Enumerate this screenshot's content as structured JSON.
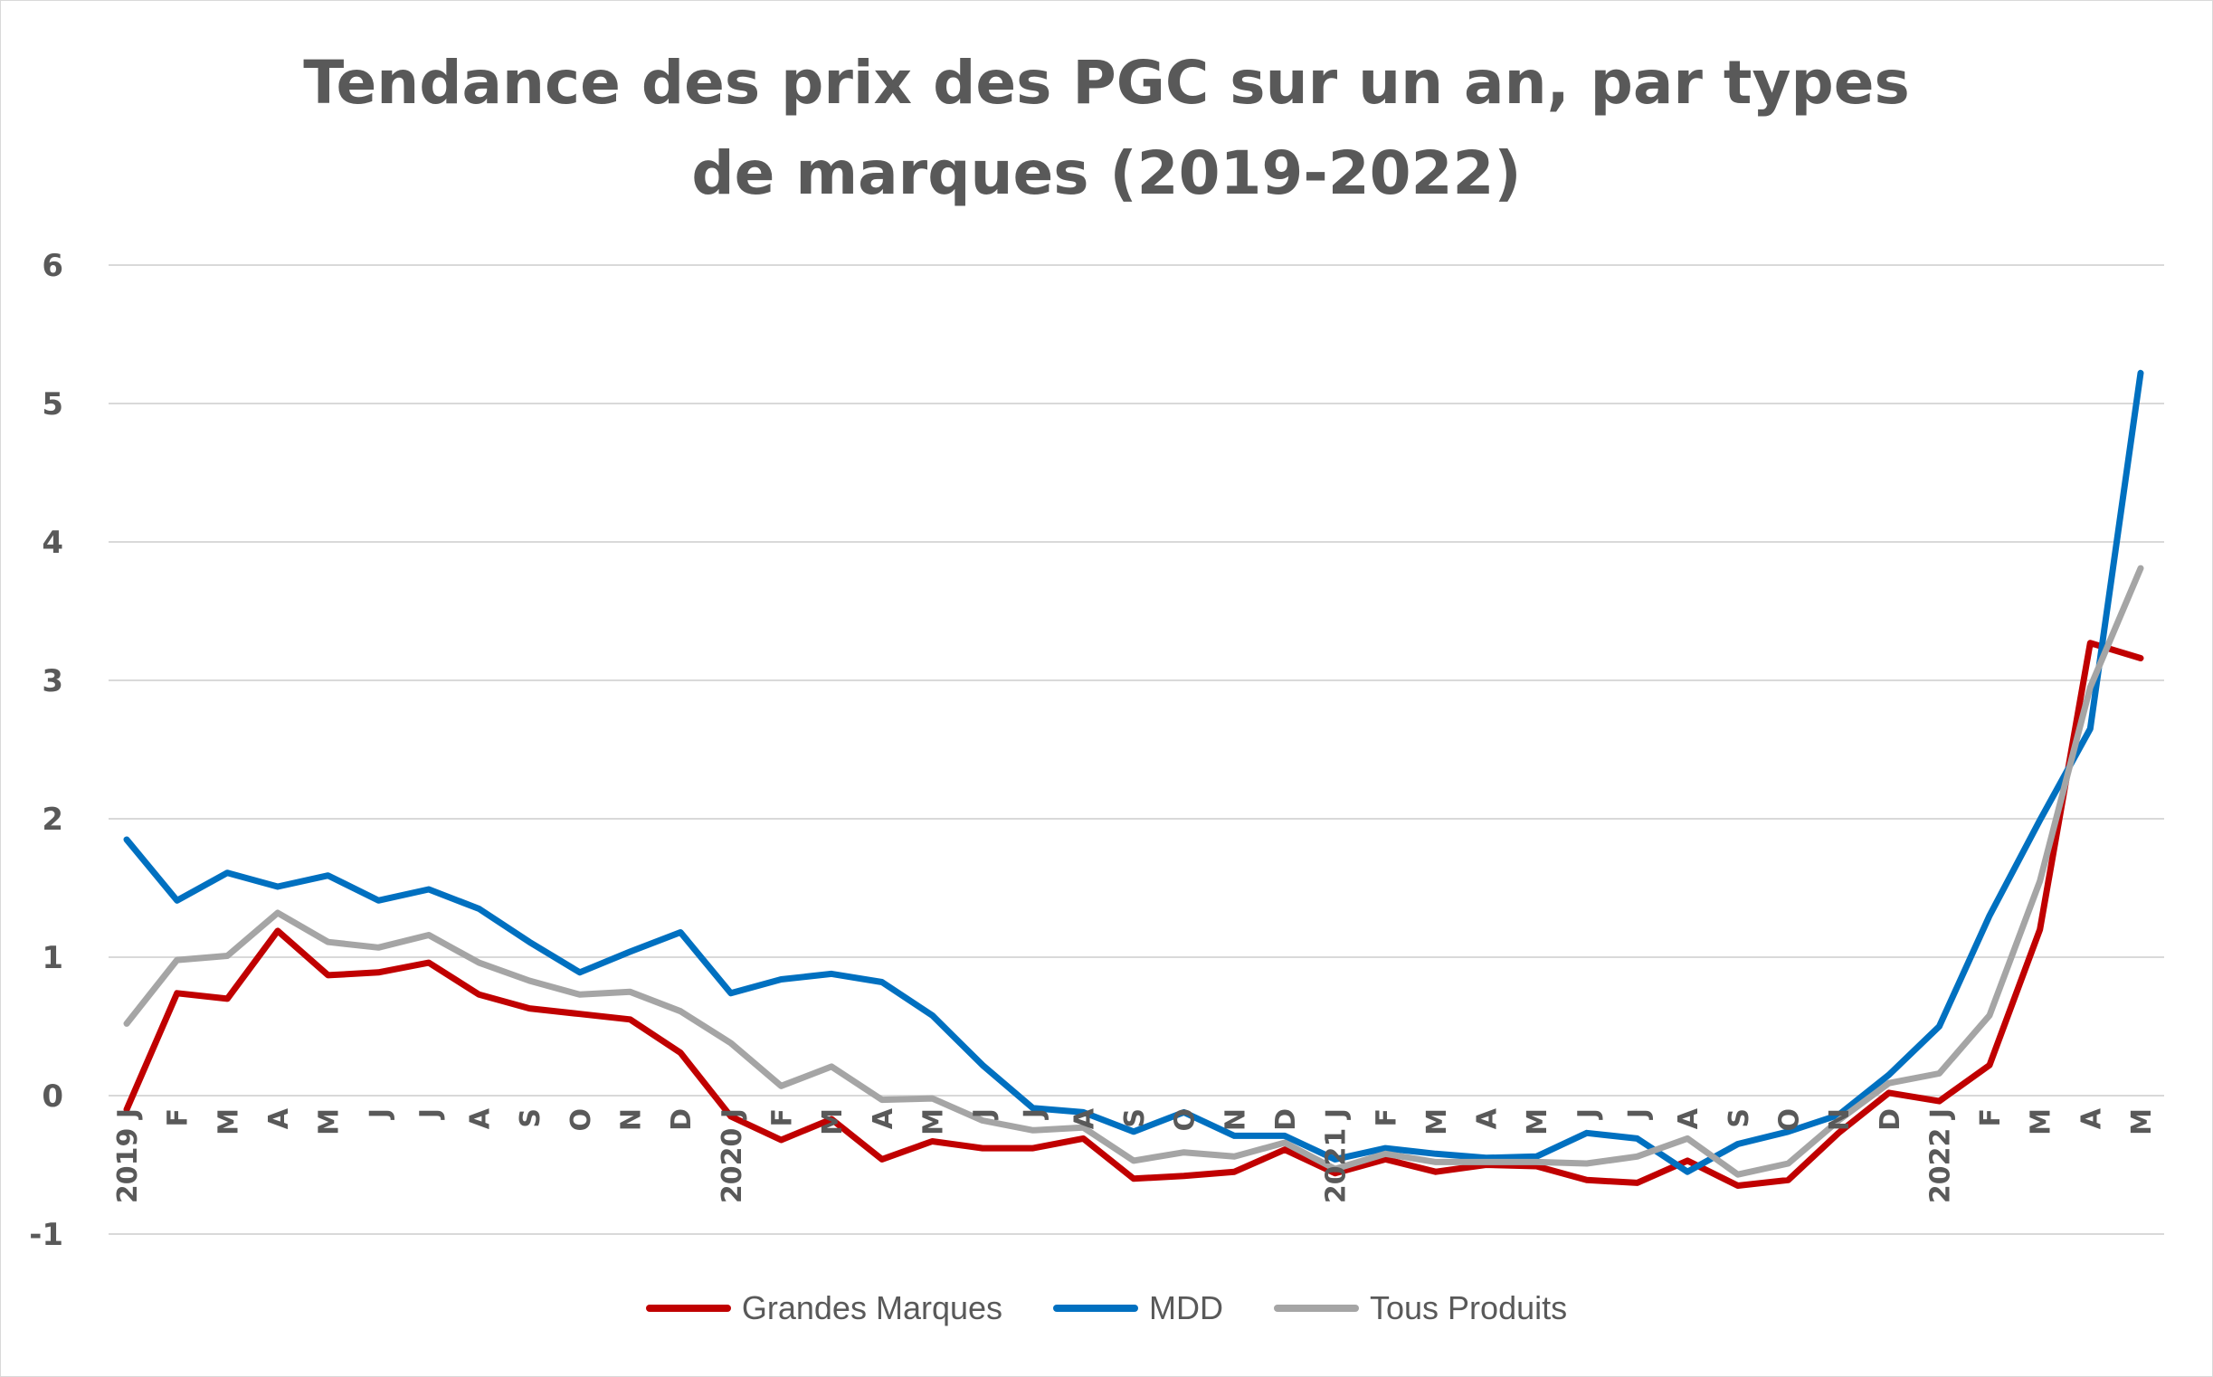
{
  "chart_data": {
    "type": "line",
    "title": "Tendance des prix des PGC sur un an, par types de marques (2019-2022)",
    "xlabel": "",
    "ylabel": "",
    "ylim": [
      -1,
      6
    ],
    "yticks": [
      "6",
      "5",
      "4",
      "3",
      "2",
      "1",
      "0",
      "-1"
    ],
    "grid": true,
    "legend_position": "bottom",
    "categories": [
      "2019 J",
      "F",
      "M",
      "A",
      "M",
      "J",
      "J",
      "A",
      "S",
      "O",
      "N",
      "D",
      "2020 J",
      "F",
      "M",
      "A",
      "M",
      "J",
      "J",
      "A",
      "S",
      "O",
      "N",
      "D",
      "2021 J",
      "F",
      "M",
      "A",
      "M",
      "J",
      "J",
      "A",
      "S",
      "O",
      "N",
      "D",
      "2022 J",
      "F",
      "M",
      "A",
      "M"
    ],
    "series": [
      {
        "name": "Grandes Marques",
        "color": "#c00000",
        "values": [
          -0.1,
          0.74,
          0.7,
          1.19,
          0.87,
          0.89,
          0.96,
          0.73,
          0.63,
          0.59,
          0.55,
          0.31,
          -0.15,
          -0.32,
          -0.17,
          -0.46,
          -0.33,
          -0.38,
          -0.38,
          -0.31,
          -0.6,
          -0.58,
          -0.55,
          -0.39,
          -0.56,
          -0.46,
          -0.55,
          -0.5,
          -0.51,
          -0.61,
          -0.63,
          -0.47,
          -0.65,
          -0.61,
          -0.27,
          0.02,
          -0.04,
          0.22,
          1.2,
          3.27,
          3.16
        ]
      },
      {
        "name": "MDD",
        "color": "#0070c0",
        "values": [
          1.85,
          1.41,
          1.61,
          1.51,
          1.59,
          1.41,
          1.49,
          1.35,
          1.11,
          0.89,
          1.04,
          1.18,
          0.74,
          0.84,
          0.88,
          0.82,
          0.58,
          0.22,
          -0.09,
          -0.12,
          -0.26,
          -0.12,
          -0.29,
          -0.29,
          -0.46,
          -0.38,
          -0.42,
          -0.45,
          -0.44,
          -0.27,
          -0.31,
          -0.55,
          -0.35,
          -0.26,
          -0.14,
          0.15,
          0.5,
          1.3,
          1.99,
          2.65,
          5.22
        ]
      },
      {
        "name": "Tous Produits",
        "color": "#a5a5a5",
        "values": [
          0.52,
          0.98,
          1.01,
          1.32,
          1.11,
          1.07,
          1.16,
          0.96,
          0.83,
          0.73,
          0.75,
          0.61,
          0.38,
          0.07,
          0.21,
          -0.03,
          -0.02,
          -0.18,
          -0.25,
          -0.23,
          -0.47,
          -0.41,
          -0.44,
          -0.34,
          -0.53,
          -0.42,
          -0.48,
          -0.48,
          -0.48,
          -0.49,
          -0.44,
          -0.31,
          -0.57,
          -0.49,
          -0.18,
          0.09,
          0.16,
          0.58,
          1.55,
          2.95,
          3.81
        ]
      }
    ]
  }
}
